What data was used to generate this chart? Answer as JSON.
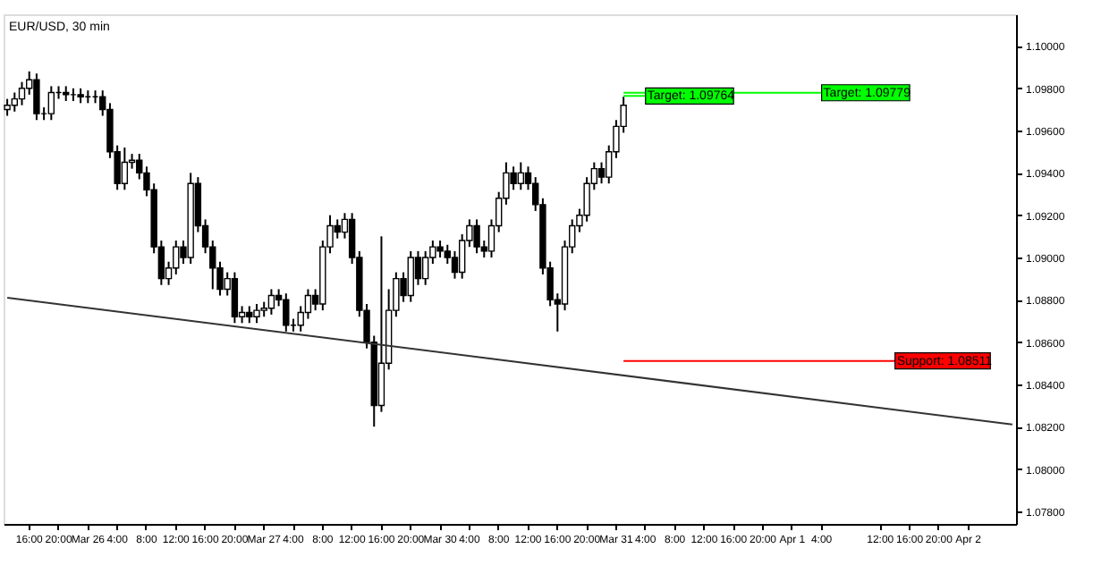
{
  "chart_data": {
    "type": "candlestick",
    "title": "EUR/USD, 30 min",
    "categories": [
      null,
      null,
      null,
      "16:00",
      null,
      null,
      null,
      "20:00",
      null,
      null,
      null,
      "Mar 26",
      null,
      null,
      null,
      "4:00",
      null,
      null,
      null,
      "8:00",
      null,
      null,
      null,
      "12:00",
      null,
      null,
      null,
      "16:00",
      null,
      null,
      null,
      "20:00",
      null,
      null,
      null,
      "Mar 27",
      null,
      null,
      null,
      "4:00",
      null,
      null,
      null,
      "8:00",
      null,
      null,
      null,
      "12:00",
      null,
      null,
      null,
      "16:00",
      null,
      null,
      null,
      "20:00",
      null,
      null,
      null,
      "Mar 30",
      null,
      null,
      null,
      "4:00",
      null,
      null,
      null,
      "8:00",
      null,
      null,
      null,
      "12:00",
      null,
      null,
      null,
      "16:00",
      null,
      null,
      null,
      "20:00",
      null,
      null,
      null,
      "Mar 31",
      null,
      null,
      null,
      "4:00",
      null,
      null,
      null,
      "8:00",
      null,
      null,
      null,
      "12:00",
      null,
      null,
      null,
      "16:00",
      null,
      null,
      null,
      "20:00",
      null,
      null,
      null,
      "Apr 1",
      null,
      null,
      null,
      "4:00",
      null,
      null,
      null,
      null,
      null,
      null,
      null,
      "12:00",
      null,
      null,
      null,
      "16:00",
      null,
      null,
      null,
      "20:00",
      null,
      null,
      null,
      "Apr 2",
      null,
      null,
      null,
      null,
      null,
      null
    ],
    "ylim": [
      1.0774,
      1.1015
    ],
    "yticks": [
      {
        "value": 1.078,
        "label": "1.07800"
      },
      {
        "value": 1.08,
        "label": "1.08000"
      },
      {
        "value": 1.082,
        "label": "1.08200"
      },
      {
        "value": 1.084,
        "label": "1.08400"
      },
      {
        "value": 1.086,
        "label": "1.08600"
      },
      {
        "value": 1.088,
        "label": "1.08800"
      },
      {
        "value": 1.09,
        "label": "1.09000"
      },
      {
        "value": 1.092,
        "label": "1.09200"
      },
      {
        "value": 1.094,
        "label": "1.09400"
      },
      {
        "value": 1.096,
        "label": "1.09600"
      },
      {
        "value": 1.098,
        "label": "1.09800"
      },
      {
        "value": 1.1,
        "label": "1.10000"
      }
    ],
    "ohlc": [
      [
        1.097,
        1.0975,
        1.0967,
        1.0972
      ],
      [
        1.0972,
        1.0978,
        1.0969,
        1.0975
      ],
      [
        1.0975,
        1.0983,
        1.0972,
        1.098
      ],
      [
        1.098,
        1.0988,
        1.0977,
        1.0984
      ],
      [
        1.0984,
        1.0987,
        1.0965,
        1.0968
      ],
      [
        1.0968,
        1.0971,
        1.0965,
        1.0968
      ],
      [
        1.0968,
        1.0981,
        1.0965,
        1.0978
      ],
      [
        1.0978,
        1.0981,
        1.0975,
        1.0978
      ],
      [
        1.0978,
        1.0981,
        1.0974,
        1.0977
      ],
      [
        1.0977,
        1.098,
        1.0974,
        1.0977
      ],
      [
        1.0977,
        1.098,
        1.0973,
        1.0976
      ],
      [
        1.0976,
        1.0979,
        1.0973,
        1.0976
      ],
      [
        1.0976,
        1.0979,
        1.0973,
        1.0976
      ],
      [
        1.0976,
        1.0979,
        1.0967,
        1.097
      ],
      [
        1.097,
        1.0973,
        1.0947,
        1.095
      ],
      [
        1.095,
        1.0953,
        1.0932,
        1.0935
      ],
      [
        1.0935,
        1.0952,
        1.0932,
        1.0945
      ],
      [
        1.0945,
        1.0949,
        1.0942,
        1.0946
      ],
      [
        1.0946,
        1.0949,
        1.0937,
        1.094
      ],
      [
        1.094,
        1.0943,
        1.0929,
        1.0932
      ],
      [
        1.0932,
        1.0935,
        1.0902,
        1.0905
      ],
      [
        1.0905,
        1.0908,
        1.0887,
        1.089
      ],
      [
        1.089,
        1.0898,
        1.0887,
        1.0895
      ],
      [
        1.0895,
        1.0908,
        1.0892,
        1.0905
      ],
      [
        1.0905,
        1.0908,
        1.0897,
        1.09
      ],
      [
        1.09,
        1.094,
        1.0897,
        1.0935
      ],
      [
        1.0935,
        1.0938,
        1.0912,
        1.0915
      ],
      [
        1.0915,
        1.0918,
        1.0902,
        1.0905
      ],
      [
        1.0905,
        1.0908,
        1.0885,
        1.0895
      ],
      [
        1.0895,
        1.0898,
        1.0882,
        1.0885
      ],
      [
        1.0885,
        1.0893,
        1.0882,
        1.089
      ],
      [
        1.089,
        1.0893,
        1.0869,
        1.0872
      ],
      [
        1.0872,
        1.0877,
        1.0869,
        1.0874
      ],
      [
        1.0874,
        1.0877,
        1.0869,
        1.0872
      ],
      [
        1.0872,
        1.0878,
        1.0869,
        1.0875
      ],
      [
        1.0875,
        1.0879,
        1.0872,
        1.0876
      ],
      [
        1.0876,
        1.0885,
        1.0873,
        1.0882
      ],
      [
        1.0882,
        1.0885,
        1.0877,
        1.088
      ],
      [
        1.088,
        1.0883,
        1.0865,
        1.0868
      ],
      [
        1.0868,
        1.0871,
        1.0865,
        1.0868
      ],
      [
        1.0868,
        1.0877,
        1.0865,
        1.0874
      ],
      [
        1.0874,
        1.0885,
        1.0871,
        1.0882
      ],
      [
        1.0882,
        1.0885,
        1.0875,
        1.0878
      ],
      [
        1.0878,
        1.0908,
        1.0875,
        1.0905
      ],
      [
        1.0905,
        1.092,
        1.0902,
        1.0915
      ],
      [
        1.0915,
        1.0918,
        1.0909,
        1.0912
      ],
      [
        1.0912,
        1.0921,
        1.0909,
        1.0918
      ],
      [
        1.0918,
        1.0921,
        1.0897,
        1.09
      ],
      [
        1.09,
        1.0903,
        1.0872,
        1.0875
      ],
      [
        1.0875,
        1.0878,
        1.0857,
        1.086
      ],
      [
        1.086,
        1.0863,
        1.082,
        1.083
      ],
      [
        1.083,
        1.091,
        1.0827,
        1.085
      ],
      [
        1.085,
        1.0885,
        1.0847,
        1.0875
      ],
      [
        1.0875,
        1.0893,
        1.0872,
        1.089
      ],
      [
        1.089,
        1.0893,
        1.0879,
        1.0882
      ],
      [
        1.0882,
        1.0903,
        1.0879,
        1.09
      ],
      [
        1.09,
        1.0903,
        1.0887,
        1.089
      ],
      [
        1.089,
        1.0903,
        1.0887,
        1.09
      ],
      [
        1.09,
        1.0908,
        1.0897,
        1.0905
      ],
      [
        1.0905,
        1.0908,
        1.09,
        1.0903
      ],
      [
        1.0903,
        1.0906,
        1.0897,
        1.09
      ],
      [
        1.09,
        1.0903,
        1.089,
        1.0893
      ],
      [
        1.0893,
        1.0911,
        1.089,
        1.0908
      ],
      [
        1.0908,
        1.0918,
        1.0905,
        1.0915
      ],
      [
        1.0915,
        1.0918,
        1.0902,
        1.0905
      ],
      [
        1.0905,
        1.0908,
        1.09,
        1.0903
      ],
      [
        1.0903,
        1.0918,
        1.09,
        1.0915
      ],
      [
        1.0915,
        1.0931,
        1.0912,
        1.0928
      ],
      [
        1.0928,
        1.0945,
        1.0925,
        1.094
      ],
      [
        1.094,
        1.0943,
        1.0932,
        1.0935
      ],
      [
        1.0935,
        1.0945,
        1.0932,
        1.094
      ],
      [
        1.094,
        1.0943,
        1.0932,
        1.0935
      ],
      [
        1.0935,
        1.0938,
        1.0922,
        1.0925
      ],
      [
        1.0925,
        1.0928,
        1.0892,
        1.0895
      ],
      [
        1.0895,
        1.0898,
        1.0877,
        1.088
      ],
      [
        1.088,
        1.0883,
        1.0865,
        1.0878
      ],
      [
        1.0878,
        1.0908,
        1.0875,
        1.0905
      ],
      [
        1.0905,
        1.0918,
        1.0902,
        1.0915
      ],
      [
        1.0915,
        1.0923,
        1.0912,
        1.092
      ],
      [
        1.092,
        1.0938,
        1.0917,
        1.0935
      ],
      [
        1.0935,
        1.0945,
        1.0932,
        1.0942
      ],
      [
        1.0942,
        1.0945,
        1.0935,
        1.0938
      ],
      [
        1.0938,
        1.0953,
        1.0935,
        1.095
      ],
      [
        1.095,
        1.0965,
        1.0947,
        1.0962
      ],
      [
        1.0962,
        1.0976,
        1.0959,
        1.0972
      ],
      null,
      null,
      null,
      null,
      null,
      null,
      null,
      null,
      null,
      null,
      null,
      null,
      null,
      null,
      null,
      null,
      null,
      null,
      null,
      null,
      null,
      null,
      null,
      null,
      null,
      null,
      null,
      null,
      null,
      null,
      null,
      null,
      null,
      null,
      null,
      null,
      null,
      null,
      null,
      null,
      null,
      null,
      null,
      null,
      null,
      null,
      null,
      null,
      null,
      null,
      null,
      null,
      null
    ],
    "color": "#000000",
    "series": [
      {
        "type": "line",
        "color": "#333333",
        "values": [
          1.0881,
          null,
          null,
          null,
          null,
          null,
          null,
          null,
          null,
          null,
          null,
          null,
          null,
          null,
          null,
          null,
          null,
          null,
          null,
          null,
          null,
          null,
          null,
          null,
          null,
          null,
          null,
          null,
          null,
          null,
          null,
          null,
          null,
          null,
          null,
          null,
          null,
          null,
          null,
          null,
          null,
          null,
          null,
          null,
          null,
          null,
          null,
          null,
          null,
          null,
          null,
          null,
          null,
          null,
          null,
          null,
          null,
          null,
          null,
          null,
          null,
          null,
          null,
          null,
          null,
          null,
          null,
          null,
          null,
          null,
          null,
          null,
          null,
          null,
          null,
          null,
          null,
          null,
          null,
          null,
          null,
          null,
          null,
          null,
          null,
          null,
          null,
          null,
          null,
          null,
          null,
          null,
          null,
          null,
          null,
          null,
          null,
          null,
          null,
          null,
          null,
          null,
          null,
          null,
          null,
          null,
          null,
          null,
          null,
          null,
          null,
          null,
          null,
          null,
          null,
          null,
          null,
          null,
          null,
          null,
          null,
          null,
          null,
          null,
          null,
          null,
          null,
          null,
          null,
          null,
          null,
          null,
          null,
          null,
          null,
          null,
          null,
          1.0821
        ]
      }
    ],
    "ref_lines": [
      {
        "axis": "y",
        "value": 1.09764,
        "label": "Target: 1.09764",
        "color": "#00ff00"
      },
      {
        "axis": "y",
        "value": 1.09779,
        "label": "Target: 1.09779",
        "color": "#00ff00"
      },
      {
        "axis": "y",
        "value": 1.08511,
        "label": "Support: 1.08511",
        "color": "#ff0000"
      }
    ]
  }
}
